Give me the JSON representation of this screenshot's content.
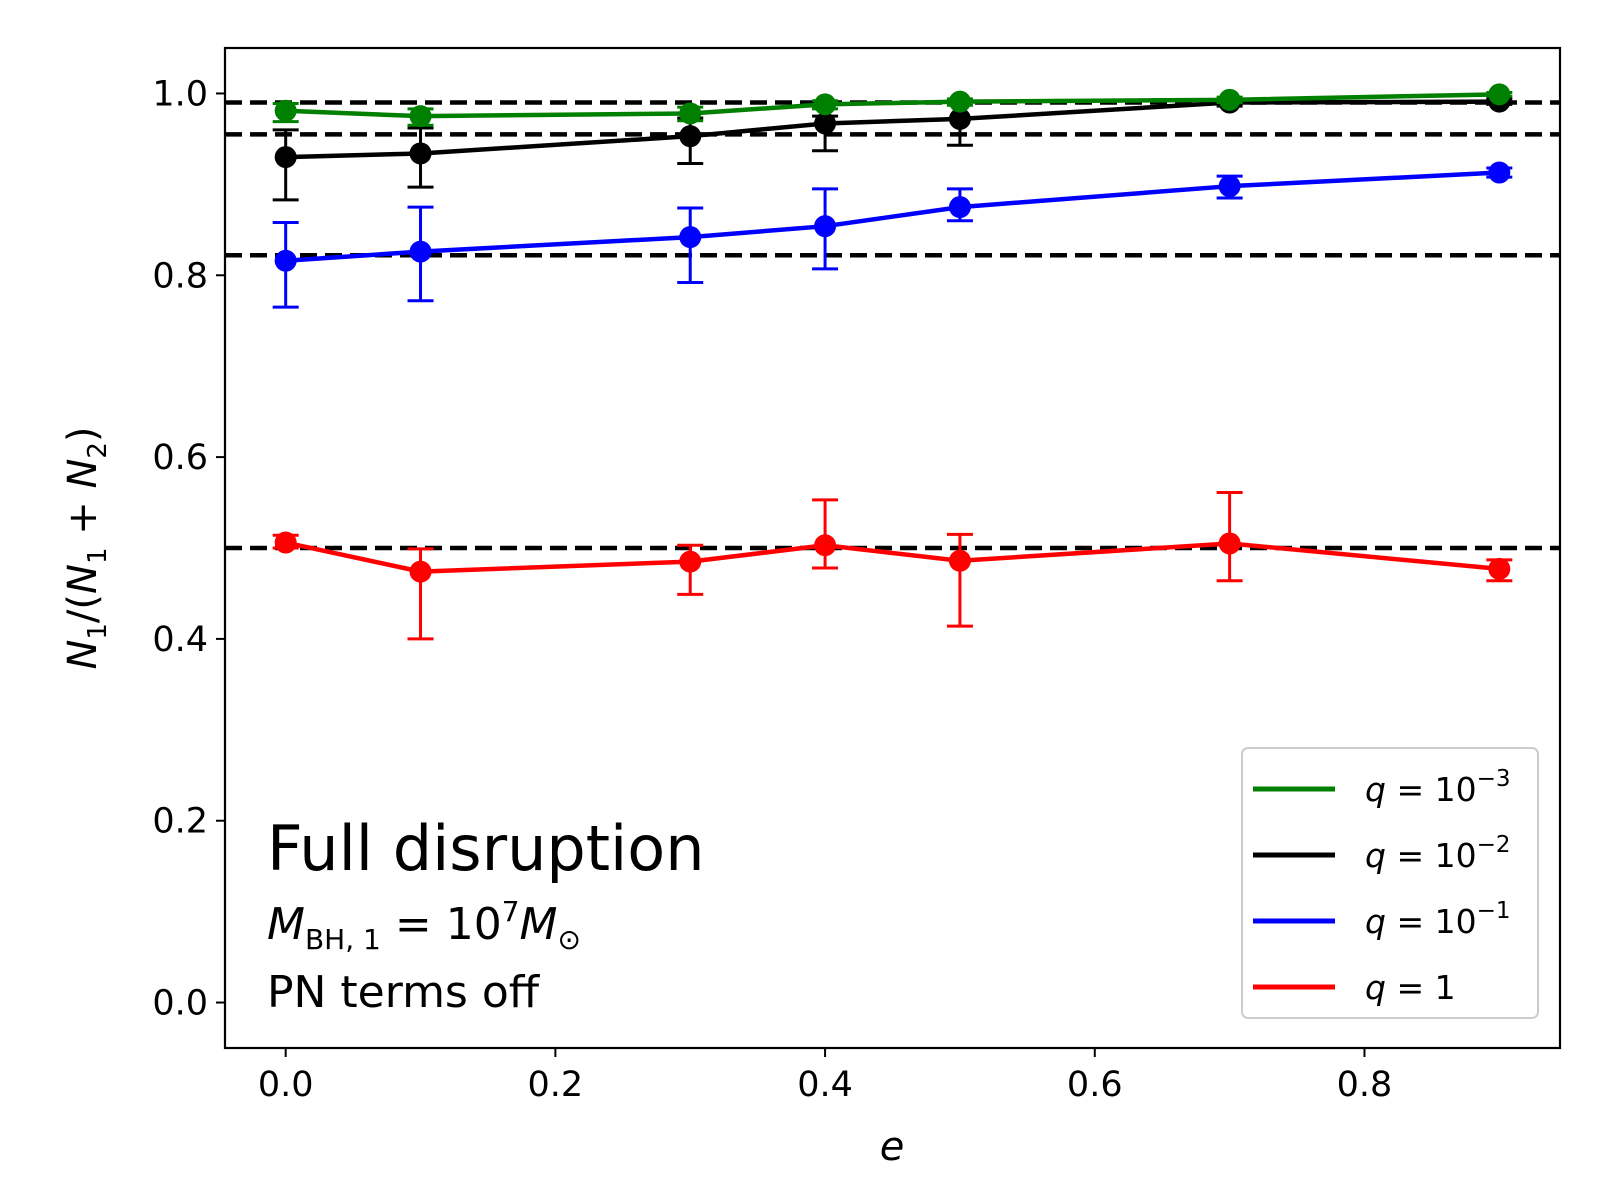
{
  "chart_data": {
    "type": "line",
    "xlabel": "e",
    "ylabel": "N_1/(N_1 + N_2)",
    "xlim": [
      -0.045,
      0.945
    ],
    "ylim": [
      -0.05,
      1.05
    ],
    "x_ticks": [
      "0.0",
      "0.2",
      "0.4",
      "0.6",
      "0.8"
    ],
    "x_tick_values": [
      0.0,
      0.2,
      0.4,
      0.6,
      0.8
    ],
    "y_ticks": [
      "0.0",
      "0.2",
      "0.4",
      "0.6",
      "0.8",
      "1.0"
    ],
    "y_tick_values": [
      0.0,
      0.2,
      0.4,
      0.6,
      0.8,
      1.0
    ],
    "reference_lines": [
      0.99,
      0.955,
      0.822,
      0.5
    ],
    "series": [
      {
        "name": "q = 10^-3",
        "label_base": "q = 10",
        "label_exp": "−3",
        "color": "#008000",
        "x": [
          0.0,
          0.1,
          0.3,
          0.4,
          0.5,
          0.7,
          0.9
        ],
        "y": [
          0.981,
          0.975,
          0.978,
          0.988,
          0.991,
          0.993,
          0.999
        ],
        "yerr_low": [
          0.012,
          0.01,
          0.008,
          0.005,
          0.004,
          0.003,
          0.002
        ],
        "yerr_high": [
          0.008,
          0.008,
          0.007,
          0.004,
          0.003,
          0.003,
          0.002
        ]
      },
      {
        "name": "q = 10^-2",
        "label_base": "q = 10",
        "label_exp": "−2",
        "color": "#000000",
        "x": [
          0.0,
          0.1,
          0.3,
          0.4,
          0.5,
          0.7,
          0.9
        ],
        "y": [
          0.93,
          0.934,
          0.953,
          0.967,
          0.972,
          0.99,
          0.991
        ],
        "yerr_low": [
          0.047,
          0.037,
          0.03,
          0.03,
          0.029,
          0.004,
          0.003
        ],
        "yerr_high": [
          0.03,
          0.028,
          0.02,
          0.008,
          0.019,
          0.004,
          0.003
        ]
      },
      {
        "name": "q = 10^-1",
        "label_base": "q = 10",
        "label_exp": "−1",
        "color": "#0000ff",
        "x": [
          0.0,
          0.1,
          0.3,
          0.4,
          0.5,
          0.7,
          0.9
        ],
        "y": [
          0.816,
          0.826,
          0.842,
          0.854,
          0.875,
          0.898,
          0.913
        ],
        "yerr_low": [
          0.051,
          0.054,
          0.05,
          0.047,
          0.015,
          0.013,
          0.005
        ],
        "yerr_high": [
          0.042,
          0.049,
          0.032,
          0.041,
          0.02,
          0.011,
          0.005
        ]
      },
      {
        "name": "q = 1",
        "label_base": "q = 1",
        "label_exp": "",
        "color": "#ff0000",
        "x": [
          0.0,
          0.1,
          0.3,
          0.4,
          0.5,
          0.7,
          0.9
        ],
        "y": [
          0.506,
          0.474,
          0.485,
          0.503,
          0.486,
          0.505,
          0.477
        ],
        "yerr_low": [
          0.006,
          0.074,
          0.036,
          0.025,
          0.072,
          0.041,
          0.013
        ],
        "yerr_high": [
          0.008,
          0.025,
          0.018,
          0.05,
          0.029,
          0.056,
          0.01
        ]
      }
    ],
    "legend_placement": "bottom-right",
    "annotations": {
      "title": "Full disruption",
      "mass_prefix": "M",
      "mass_sub": "BH, 1",
      "mass_mid": " = 10",
      "mass_exp": "7",
      "mass_suffix": "M",
      "mass_sun": "⊙",
      "pn": "PN terms off"
    }
  }
}
